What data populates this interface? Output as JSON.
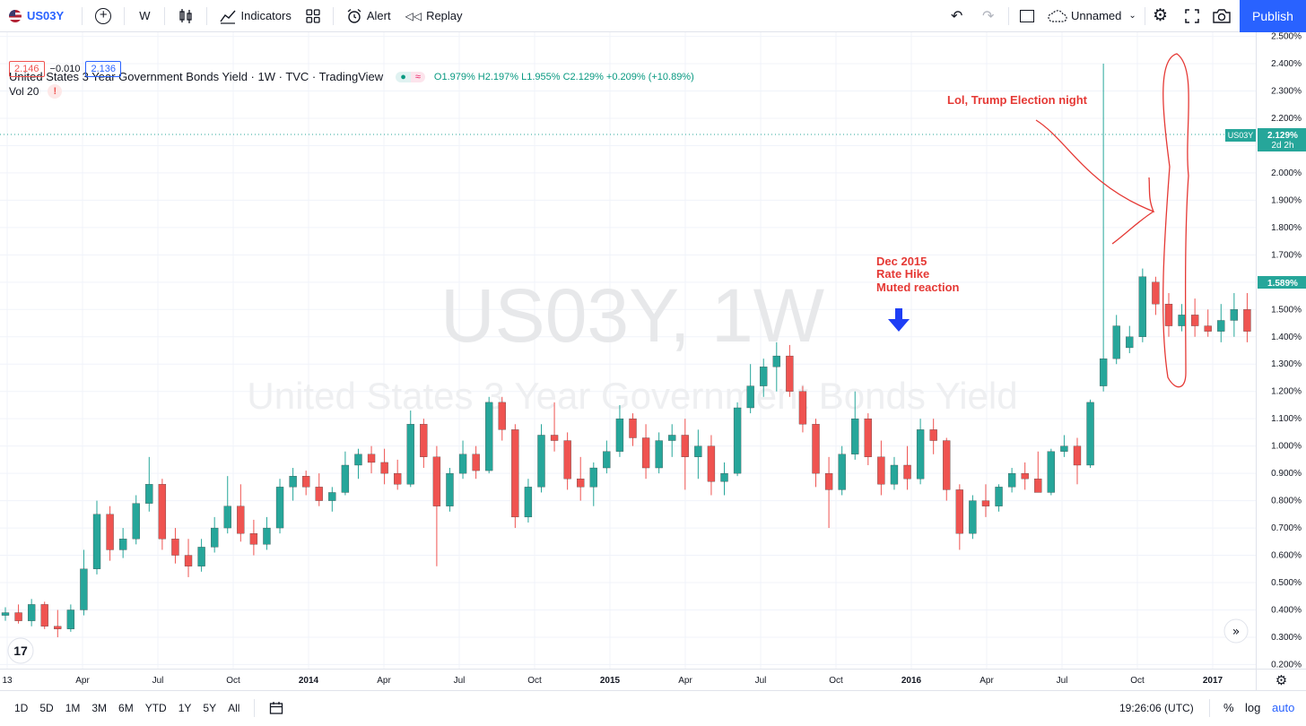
{
  "toolbar": {
    "symbol": "US03Y",
    "interval": "W",
    "indicators_label": "Indicators",
    "alert_label": "Alert",
    "replay_label": "Replay",
    "layout_name": "Unnamed",
    "publish_label": "Publish"
  },
  "legend": {
    "title": "United States 3 Year Government Bonds Yield · 1W · TVC · TradingView",
    "ohlc": "O1.979% H2.197% L1.955% C2.129% +0.209% (+10.89%)",
    "bid": "2.146",
    "spread": "−0.010",
    "ask": "2.136",
    "vol_label": "Vol 20",
    "warning": "!"
  },
  "watermark": {
    "symbol": "US03Y, 1W",
    "name": "United States 3 Year Government Bonds Yield"
  },
  "annotations": {
    "rate_hike_line1": "Dec 2015",
    "rate_hike_line2": "Rate Hike",
    "rate_hike_line3": "Muted reaction",
    "election": "Lol, Trump Election night"
  },
  "price_labels": {
    "last_symbol": "US03Y",
    "last_value": "2.129%",
    "last_countdown": "2d 2h",
    "current_value": "1.589%"
  },
  "chart_data": {
    "type": "candlestick",
    "title": "United States 3 Year Government Bonds Yield",
    "yunit": "%",
    "ylim": [
      0.185,
      2.515
    ],
    "yticks": [
      "2.500%",
      "2.400%",
      "2.300%",
      "2.200%",
      "2.100%",
      "2.000%",
      "1.900%",
      "1.800%",
      "1.700%",
      "1.600%",
      "1.500%",
      "1.400%",
      "1.300%",
      "1.200%",
      "1.100%",
      "1.000%",
      "0.900%",
      "0.800%",
      "0.700%",
      "0.600%",
      "0.500%",
      "0.400%",
      "0.300%",
      "0.200%"
    ],
    "xticks": [
      "13",
      "Apr",
      "Jul",
      "Oct",
      "2014",
      "Apr",
      "Jul",
      "Oct",
      "2015",
      "Apr",
      "Jul",
      "Oct",
      "2016",
      "Apr",
      "Jul",
      "Oct",
      "2017"
    ],
    "xticks_bold": [
      "2014",
      "2015",
      "2016",
      "2017"
    ],
    "up_color": "#26a69a",
    "down_color": "#ef5350",
    "candles": [
      {
        "date": "2013-01",
        "o": 0.38,
        "h": 0.41,
        "l": 0.36,
        "c": 0.39
      },
      {
        "date": "2013-02",
        "o": 0.39,
        "h": 0.42,
        "l": 0.35,
        "c": 0.36
      },
      {
        "date": "2013-03",
        "o": 0.36,
        "h": 0.44,
        "l": 0.34,
        "c": 0.42
      },
      {
        "date": "2013-04",
        "o": 0.42,
        "h": 0.43,
        "l": 0.33,
        "c": 0.34
      },
      {
        "date": "2013-05",
        "o": 0.34,
        "h": 0.4,
        "l": 0.3,
        "c": 0.33
      },
      {
        "date": "2013-05b",
        "o": 0.33,
        "h": 0.42,
        "l": 0.32,
        "c": 0.4
      },
      {
        "date": "2013-06",
        "o": 0.4,
        "h": 0.62,
        "l": 0.38,
        "c": 0.55
      },
      {
        "date": "2013-06b",
        "o": 0.55,
        "h": 0.8,
        "l": 0.53,
        "c": 0.75
      },
      {
        "date": "2013-07",
        "o": 0.75,
        "h": 0.78,
        "l": 0.58,
        "c": 0.62
      },
      {
        "date": "2013-07b",
        "o": 0.62,
        "h": 0.7,
        "l": 0.59,
        "c": 0.66
      },
      {
        "date": "2013-08",
        "o": 0.66,
        "h": 0.82,
        "l": 0.64,
        "c": 0.79
      },
      {
        "date": "2013-09",
        "o": 0.79,
        "h": 0.96,
        "l": 0.76,
        "c": 0.86
      },
      {
        "date": "2013-09b",
        "o": 0.86,
        "h": 0.88,
        "l": 0.62,
        "c": 0.66
      },
      {
        "date": "2013-10",
        "o": 0.66,
        "h": 0.7,
        "l": 0.57,
        "c": 0.6
      },
      {
        "date": "2013-10b",
        "o": 0.6,
        "h": 0.66,
        "l": 0.52,
        "c": 0.56
      },
      {
        "date": "2013-11",
        "o": 0.56,
        "h": 0.66,
        "l": 0.54,
        "c": 0.63
      },
      {
        "date": "2013-11b",
        "o": 0.63,
        "h": 0.74,
        "l": 0.61,
        "c": 0.7
      },
      {
        "date": "2013-12",
        "o": 0.7,
        "h": 0.89,
        "l": 0.68,
        "c": 0.78
      },
      {
        "date": "2014-01",
        "o": 0.78,
        "h": 0.86,
        "l": 0.65,
        "c": 0.68
      },
      {
        "date": "2014-01b",
        "o": 0.68,
        "h": 0.73,
        "l": 0.6,
        "c": 0.64
      },
      {
        "date": "2014-02",
        "o": 0.64,
        "h": 0.74,
        "l": 0.62,
        "c": 0.7
      },
      {
        "date": "2014-03",
        "o": 0.7,
        "h": 0.88,
        "l": 0.68,
        "c": 0.85
      },
      {
        "date": "2014-03b",
        "o": 0.85,
        "h": 0.92,
        "l": 0.8,
        "c": 0.89
      },
      {
        "date": "2014-04",
        "o": 0.89,
        "h": 0.91,
        "l": 0.82,
        "c": 0.85
      },
      {
        "date": "2014-04b",
        "o": 0.85,
        "h": 0.9,
        "l": 0.78,
        "c": 0.8
      },
      {
        "date": "2014-05",
        "o": 0.8,
        "h": 0.85,
        "l": 0.76,
        "c": 0.83
      },
      {
        "date": "2014-06",
        "o": 0.83,
        "h": 0.98,
        "l": 0.82,
        "c": 0.93
      },
      {
        "date": "2014-06b",
        "o": 0.93,
        "h": 0.99,
        "l": 0.88,
        "c": 0.97
      },
      {
        "date": "2014-07",
        "o": 0.97,
        "h": 1.0,
        "l": 0.9,
        "c": 0.94
      },
      {
        "date": "2014-07b",
        "o": 0.94,
        "h": 0.99,
        "l": 0.86,
        "c": 0.9
      },
      {
        "date": "2014-08",
        "o": 0.9,
        "h": 0.95,
        "l": 0.84,
        "c": 0.86
      },
      {
        "date": "2014-09",
        "o": 0.86,
        "h": 1.13,
        "l": 0.85,
        "c": 1.08
      },
      {
        "date": "2014-09b",
        "o": 1.08,
        "h": 1.1,
        "l": 0.92,
        "c": 0.96
      },
      {
        "date": "2014-10",
        "o": 0.96,
        "h": 1.0,
        "l": 0.56,
        "c": 0.78
      },
      {
        "date": "2014-10b",
        "o": 0.78,
        "h": 0.92,
        "l": 0.76,
        "c": 0.9
      },
      {
        "date": "2014-11",
        "o": 0.9,
        "h": 1.02,
        "l": 0.88,
        "c": 0.97
      },
      {
        "date": "2014-11b",
        "o": 0.97,
        "h": 1.0,
        "l": 0.88,
        "c": 0.91
      },
      {
        "date": "2014-12",
        "o": 0.91,
        "h": 1.18,
        "l": 0.9,
        "c": 1.16
      },
      {
        "date": "2014-12b",
        "o": 1.16,
        "h": 1.18,
        "l": 1.02,
        "c": 1.06
      },
      {
        "date": "2015-01",
        "o": 1.06,
        "h": 1.08,
        "l": 0.7,
        "c": 0.74
      },
      {
        "date": "2015-01b",
        "o": 0.74,
        "h": 0.88,
        "l": 0.72,
        "c": 0.85
      },
      {
        "date": "2015-02",
        "o": 0.85,
        "h": 1.08,
        "l": 0.83,
        "c": 1.04
      },
      {
        "date": "2015-03",
        "o": 1.04,
        "h": 1.16,
        "l": 0.98,
        "c": 1.02
      },
      {
        "date": "2015-03b",
        "o": 1.02,
        "h": 1.05,
        "l": 0.84,
        "c": 0.88
      },
      {
        "date": "2015-04",
        "o": 0.88,
        "h": 0.96,
        "l": 0.8,
        "c": 0.85
      },
      {
        "date": "2015-04b",
        "o": 0.85,
        "h": 0.94,
        "l": 0.78,
        "c": 0.92
      },
      {
        "date": "2015-05",
        "o": 0.92,
        "h": 1.02,
        "l": 0.9,
        "c": 0.98
      },
      {
        "date": "2015-06",
        "o": 0.98,
        "h": 1.15,
        "l": 0.96,
        "c": 1.1
      },
      {
        "date": "2015-06b",
        "o": 1.1,
        "h": 1.12,
        "l": 1.0,
        "c": 1.03
      },
      {
        "date": "2015-07",
        "o": 1.03,
        "h": 1.08,
        "l": 0.88,
        "c": 0.92
      },
      {
        "date": "2015-07b",
        "o": 0.92,
        "h": 1.05,
        "l": 0.9,
        "c": 1.02
      },
      {
        "date": "2015-08",
        "o": 1.02,
        "h": 1.08,
        "l": 0.96,
        "c": 1.04
      },
      {
        "date": "2015-08b",
        "o": 1.04,
        "h": 1.1,
        "l": 0.84,
        "c": 0.96
      },
      {
        "date": "2015-09",
        "o": 0.96,
        "h": 1.06,
        "l": 0.88,
        "c": 1.0
      },
      {
        "date": "2015-09b",
        "o": 1.0,
        "h": 1.04,
        "l": 0.82,
        "c": 0.87
      },
      {
        "date": "2015-10",
        "o": 0.87,
        "h": 0.94,
        "l": 0.82,
        "c": 0.9
      },
      {
        "date": "2015-10b",
        "o": 0.9,
        "h": 1.16,
        "l": 0.89,
        "c": 1.14
      },
      {
        "date": "2015-11",
        "o": 1.14,
        "h": 1.3,
        "l": 1.12,
        "c": 1.22
      },
      {
        "date": "2015-11b",
        "o": 1.22,
        "h": 1.32,
        "l": 1.18,
        "c": 1.29
      },
      {
        "date": "2015-12",
        "o": 1.29,
        "h": 1.38,
        "l": 1.2,
        "c": 1.33
      },
      {
        "date": "2015-12b",
        "o": 1.33,
        "h": 1.37,
        "l": 1.18,
        "c": 1.2
      },
      {
        "date": "2016-01",
        "o": 1.2,
        "h": 1.22,
        "l": 1.05,
        "c": 1.08
      },
      {
        "date": "2016-01b",
        "o": 1.08,
        "h": 1.1,
        "l": 0.85,
        "c": 0.9
      },
      {
        "date": "2016-02",
        "o": 0.9,
        "h": 0.96,
        "l": 0.7,
        "c": 0.84
      },
      {
        "date": "2016-02b",
        "o": 0.84,
        "h": 1.0,
        "l": 0.82,
        "c": 0.97
      },
      {
        "date": "2016-03",
        "o": 0.97,
        "h": 1.2,
        "l": 0.95,
        "c": 1.1
      },
      {
        "date": "2016-03b",
        "o": 1.1,
        "h": 1.12,
        "l": 0.93,
        "c": 0.96
      },
      {
        "date": "2016-04",
        "o": 0.96,
        "h": 1.02,
        "l": 0.82,
        "c": 0.86
      },
      {
        "date": "2016-04b",
        "o": 0.86,
        "h": 0.96,
        "l": 0.84,
        "c": 0.93
      },
      {
        "date": "2016-05",
        "o": 0.93,
        "h": 1.0,
        "l": 0.84,
        "c": 0.88
      },
      {
        "date": "2016-05b",
        "o": 0.88,
        "h": 1.1,
        "l": 0.86,
        "c": 1.06
      },
      {
        "date": "2016-06",
        "o": 1.06,
        "h": 1.1,
        "l": 0.97,
        "c": 1.02
      },
      {
        "date": "2016-06b",
        "o": 1.02,
        "h": 1.03,
        "l": 0.8,
        "c": 0.84
      },
      {
        "date": "2016-07",
        "o": 0.84,
        "h": 0.86,
        "l": 0.62,
        "c": 0.68
      },
      {
        "date": "2016-07b",
        "o": 0.68,
        "h": 0.82,
        "l": 0.66,
        "c": 0.8
      },
      {
        "date": "2016-08",
        "o": 0.8,
        "h": 0.86,
        "l": 0.74,
        "c": 0.78
      },
      {
        "date": "2016-08b",
        "o": 0.78,
        "h": 0.86,
        "l": 0.76,
        "c": 0.85
      },
      {
        "date": "2016-09",
        "o": 0.85,
        "h": 0.92,
        "l": 0.83,
        "c": 0.9
      },
      {
        "date": "2016-09b",
        "o": 0.9,
        "h": 0.94,
        "l": 0.84,
        "c": 0.88
      },
      {
        "date": "2016-10",
        "o": 0.88,
        "h": 0.98,
        "l": 0.84,
        "c": 0.83
      },
      {
        "date": "2016-10b",
        "o": 0.83,
        "h": 0.99,
        "l": 0.82,
        "c": 0.98
      },
      {
        "date": "2016-10c",
        "o": 0.98,
        "h": 1.04,
        "l": 0.96,
        "c": 1.0
      },
      {
        "date": "2016-11",
        "o": 1.0,
        "h": 1.03,
        "l": 0.86,
        "c": 0.93
      },
      {
        "date": "2016-11b",
        "o": 0.93,
        "h": 1.17,
        "l": 0.92,
        "c": 1.16
      },
      {
        "date": "2016-11c",
        "o": 1.22,
        "h": 2.4,
        "l": 1.2,
        "c": 1.32
      },
      {
        "date": "2016-11d",
        "o": 1.32,
        "h": 1.48,
        "l": 1.3,
        "c": 1.44
      },
      {
        "date": "2016-12",
        "o": 1.36,
        "h": 1.44,
        "l": 1.34,
        "c": 1.4
      },
      {
        "date": "2016-12b",
        "o": 1.4,
        "h": 1.65,
        "l": 1.38,
        "c": 1.62
      },
      {
        "date": "2016-12c",
        "o": 1.6,
        "h": 1.62,
        "l": 1.48,
        "c": 1.52
      },
      {
        "date": "2017-01",
        "o": 1.52,
        "h": 1.56,
        "l": 1.4,
        "c": 1.44
      },
      {
        "date": "2017-01b",
        "o": 1.44,
        "h": 1.52,
        "l": 1.42,
        "c": 1.48
      },
      {
        "date": "2017-02",
        "o": 1.48,
        "h": 1.54,
        "l": 1.4,
        "c": 1.44
      },
      {
        "date": "2017-02b",
        "o": 1.44,
        "h": 1.5,
        "l": 1.4,
        "c": 1.42
      },
      {
        "date": "2017-03",
        "o": 1.42,
        "h": 1.52,
        "l": 1.38,
        "c": 1.46
      },
      {
        "date": "2017-03b",
        "o": 1.46,
        "h": 1.56,
        "l": 1.4,
        "c": 1.5
      },
      {
        "date": "2017-04",
        "o": 1.5,
        "h": 1.56,
        "l": 1.38,
        "c": 1.42
      },
      {
        "date": "2017-04b",
        "o": 1.42,
        "h": 1.62,
        "l": 1.4,
        "c": 1.589
      }
    ]
  },
  "timescale": {
    "ranges": [
      "1D",
      "5D",
      "1M",
      "3M",
      "6M",
      "YTD",
      "1Y",
      "5Y",
      "All"
    ],
    "clock": "19:26:06 (UTC)",
    "percent_label": "%",
    "log_label": "log",
    "auto_label": "auto"
  }
}
